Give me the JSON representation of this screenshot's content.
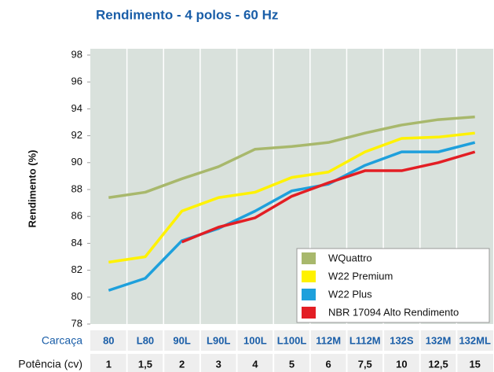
{
  "chart_data": {
    "type": "line",
    "title": "Rendimento - 4 polos - 60 Hz",
    "y_label": "Rendimento (%)",
    "row_labels": [
      "Carcaça",
      "Potência (cv)"
    ],
    "categories": [
      "80",
      "L80",
      "90L",
      "L90L",
      "100L",
      "L100L",
      "112M",
      "L112M",
      "132S",
      "132M",
      "132ML"
    ],
    "power": [
      "1",
      "1,5",
      "2",
      "3",
      "4",
      "5",
      "6",
      "7,5",
      "10",
      "12,5",
      "15"
    ],
    "ylim": [
      78,
      98
    ],
    "yticks": [
      78,
      80,
      82,
      84,
      86,
      88,
      90,
      92,
      94,
      96,
      98
    ],
    "legend": "lower right",
    "series": [
      {
        "name": "WQuattro",
        "color": "#a8b86c",
        "values": [
          87.4,
          87.8,
          88.8,
          89.7,
          91.0,
          91.2,
          91.5,
          92.2,
          92.8,
          93.2,
          93.4
        ]
      },
      {
        "name": "W22 Premium",
        "color": "#fff200",
        "values": [
          82.6,
          83.0,
          86.4,
          87.4,
          87.8,
          88.9,
          89.3,
          90.8,
          91.8,
          91.9,
          92.2
        ]
      },
      {
        "name": "W22 Plus",
        "color": "#1ea0dc",
        "values": [
          80.5,
          81.4,
          84.2,
          85.1,
          86.4,
          87.9,
          88.4,
          89.8,
          90.8,
          90.8,
          91.5
        ]
      },
      {
        "name": "NBR 17094 Alto Rendimento",
        "color": "#e31e24",
        "values": [
          null,
          null,
          84.1,
          85.2,
          85.9,
          87.5,
          88.5,
          89.4,
          89.4,
          90.0,
          90.8
        ]
      }
    ]
  }
}
